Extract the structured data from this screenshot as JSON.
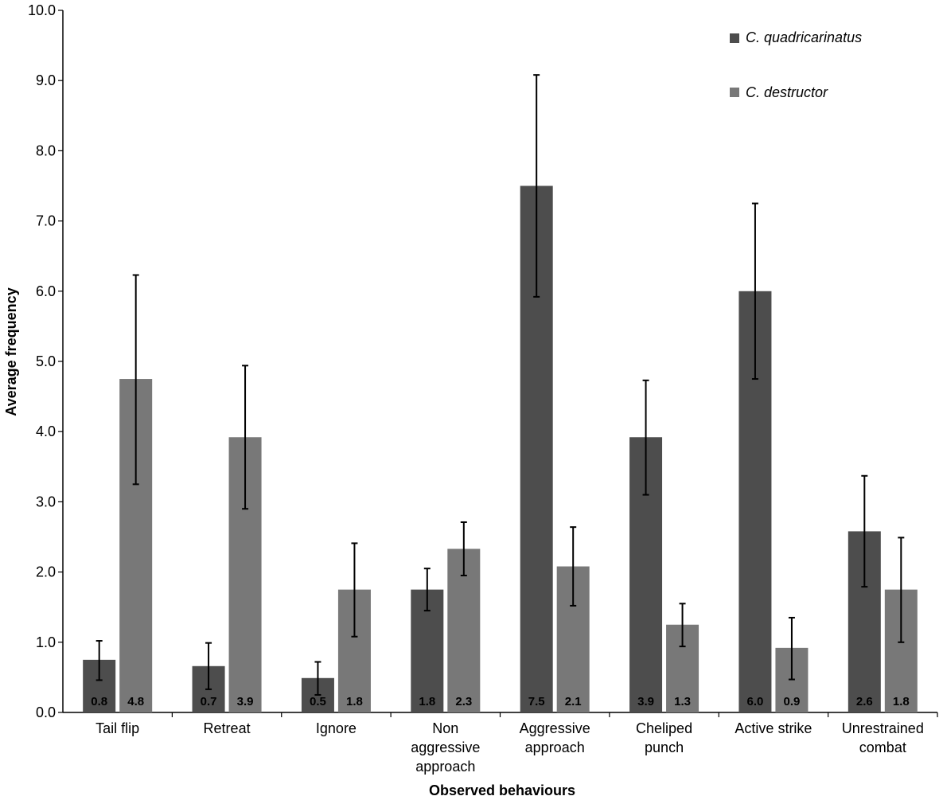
{
  "chart_data": {
    "type": "bar",
    "title": "",
    "xlabel": "Observed behaviours",
    "ylabel": "Average frequency",
    "ylim": [
      0,
      10
    ],
    "yticks": [
      "0.0",
      "1.0",
      "2.0",
      "3.0",
      "4.0",
      "5.0",
      "6.0",
      "7.0",
      "8.0",
      "9.0",
      "10.0"
    ],
    "grid": false,
    "legend_position": "top-right",
    "categories": [
      [
        "Tail flip"
      ],
      [
        "Retreat"
      ],
      [
        "Ignore"
      ],
      [
        "Non",
        "aggressive",
        "approach"
      ],
      [
        "Aggressive",
        "approach"
      ],
      [
        "Cheliped",
        "punch"
      ],
      [
        "Active strike"
      ],
      [
        "Unrestrained",
        "combat"
      ]
    ],
    "series": [
      {
        "name": "C. quadricarinatus",
        "color": "#4d4d4d",
        "values": [
          0.75,
          0.66,
          0.49,
          1.75,
          7.5,
          3.92,
          6.0,
          2.58
        ],
        "labels": [
          "0.8",
          "0.7",
          "0.5",
          "1.8",
          "7.5",
          "3.9",
          "6.0",
          "2.6"
        ],
        "error_low": [
          0.46,
          0.33,
          0.25,
          1.45,
          5.92,
          3.1,
          4.75,
          1.79
        ],
        "error_high": [
          1.02,
          0.99,
          0.72,
          2.05,
          9.08,
          4.73,
          7.25,
          3.37
        ]
      },
      {
        "name": "C. destructor",
        "color": "#787878",
        "values": [
          4.75,
          3.92,
          1.75,
          2.33,
          2.08,
          1.25,
          0.92,
          1.75
        ],
        "labels": [
          "4.8",
          "3.9",
          "1.8",
          "2.3",
          "2.1",
          "1.3",
          "0.9",
          "1.8"
        ],
        "error_low": [
          3.25,
          2.9,
          1.08,
          1.95,
          1.52,
          0.94,
          0.47,
          1.0
        ],
        "error_high": [
          6.23,
          4.94,
          2.41,
          2.71,
          2.64,
          1.55,
          1.35,
          2.49
        ]
      }
    ]
  }
}
